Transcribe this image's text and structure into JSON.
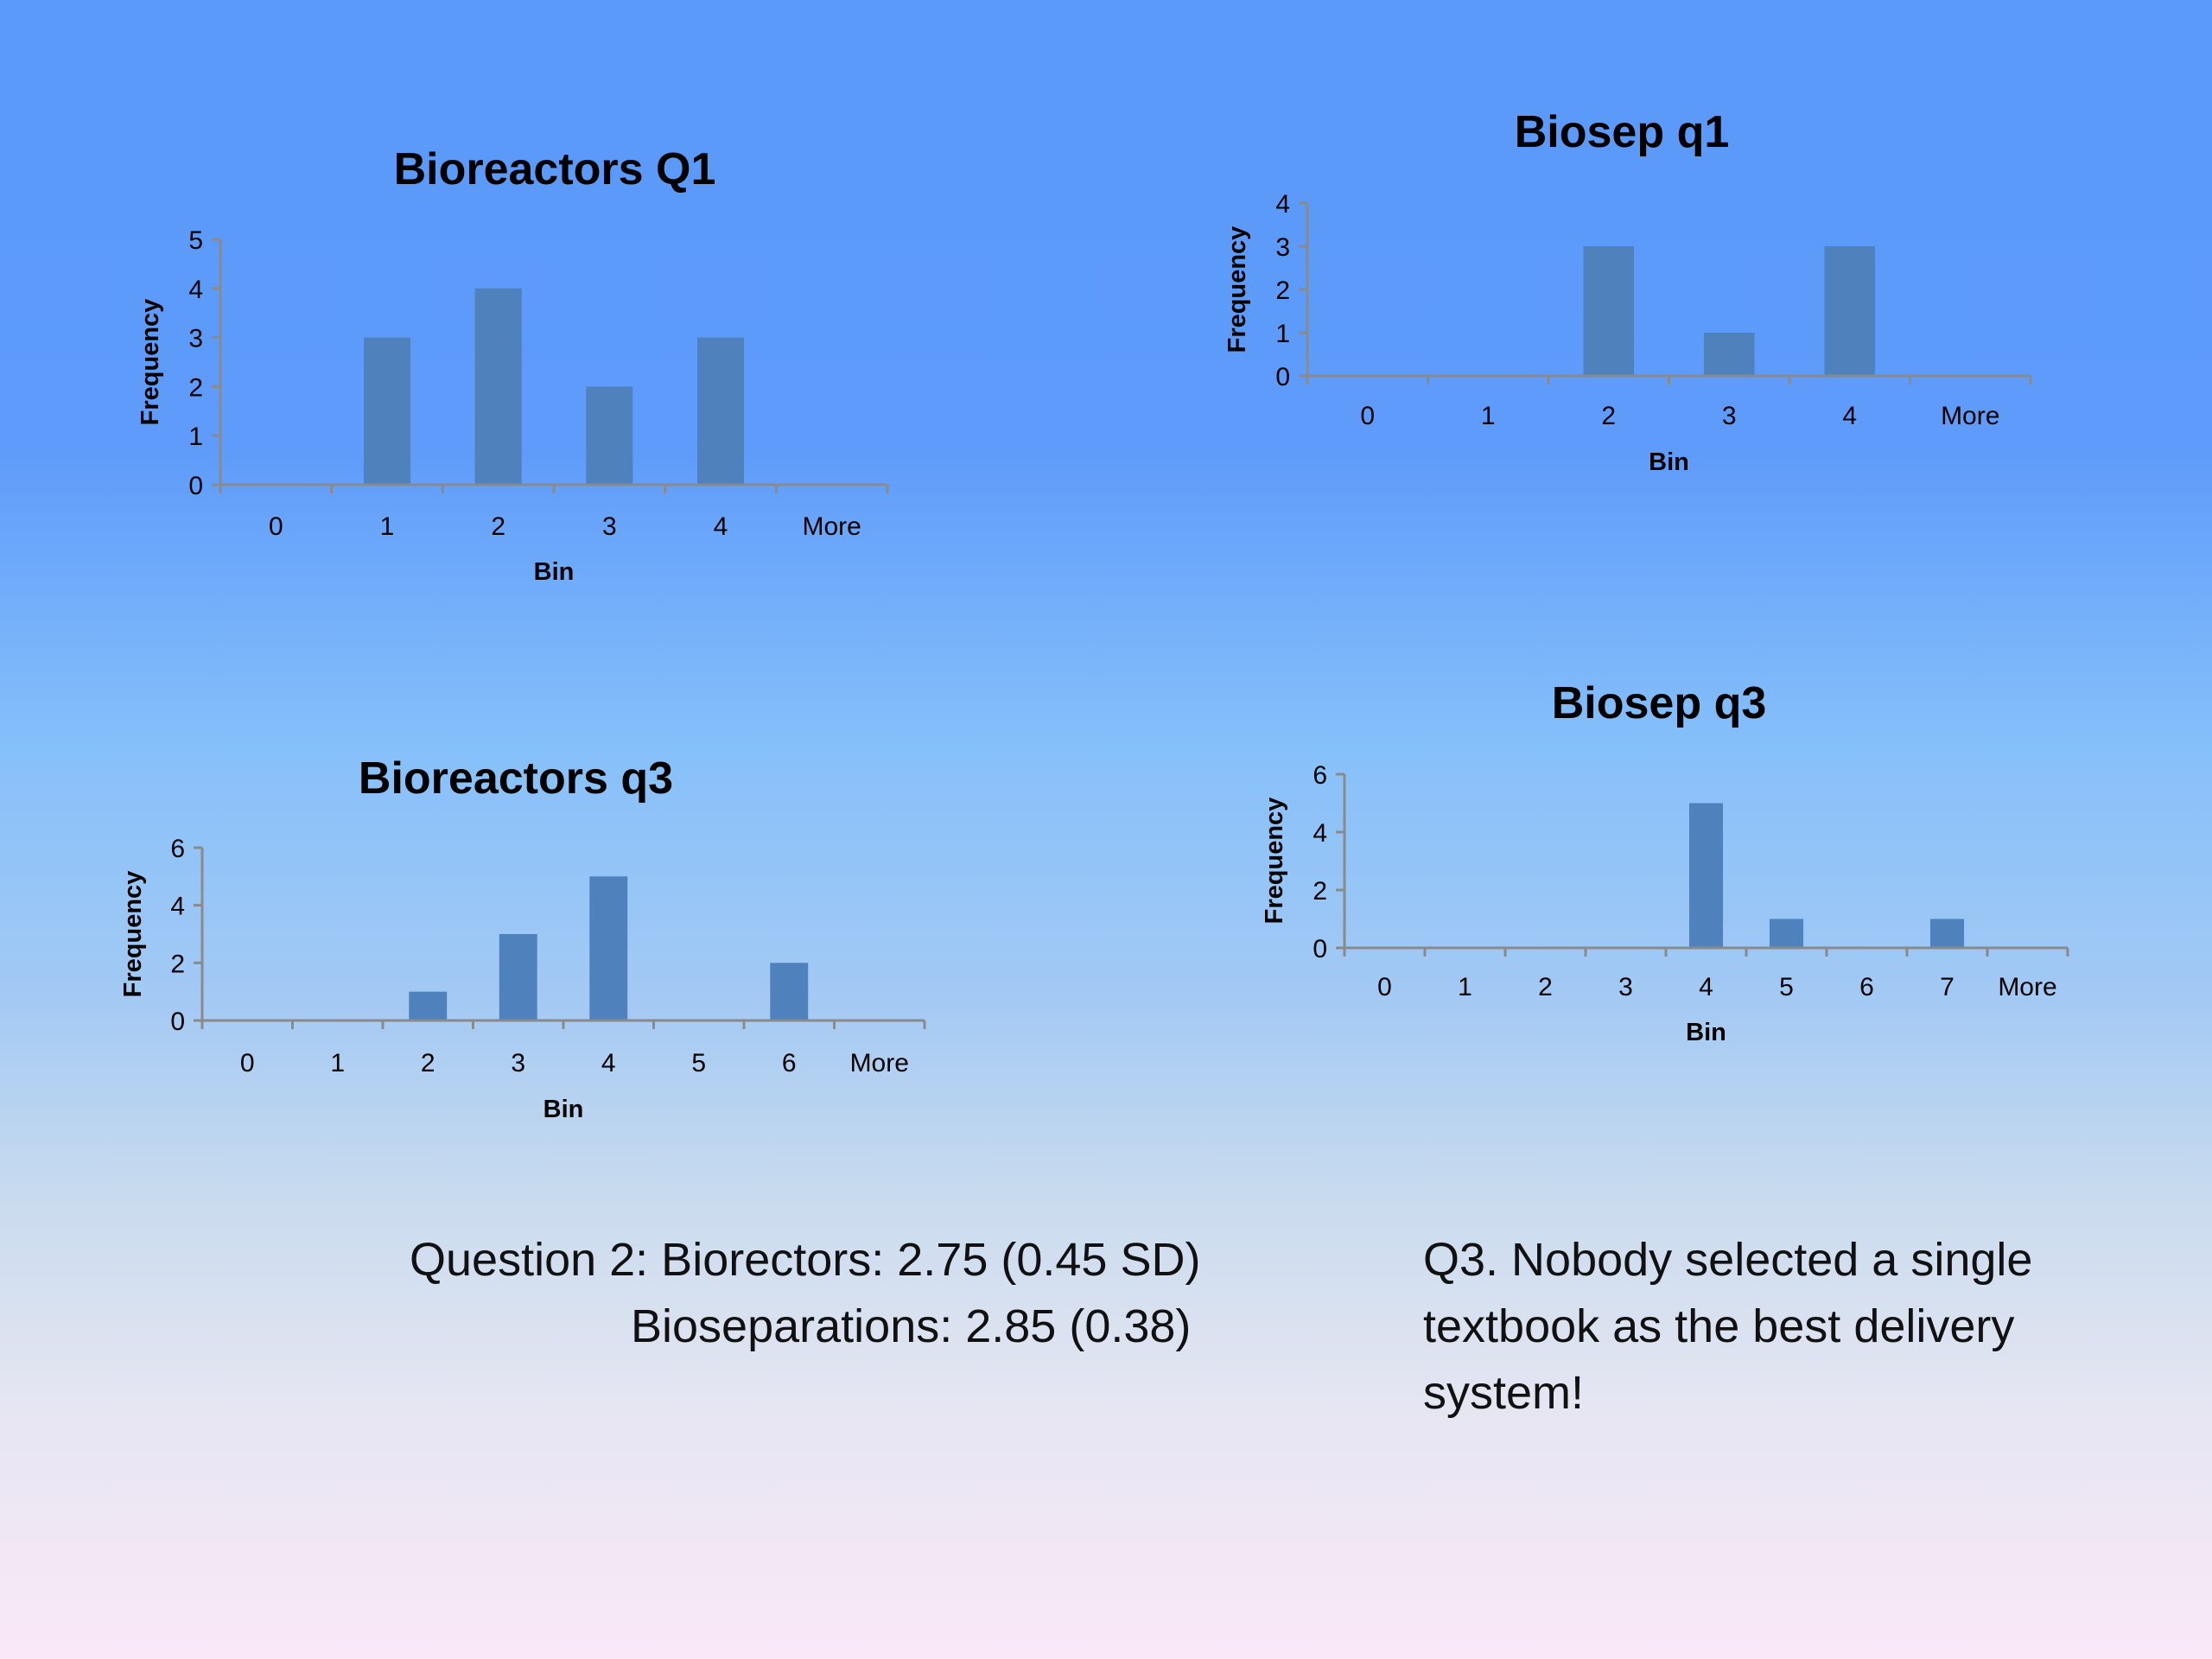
{
  "chart_data": [
    {
      "type": "bar",
      "title": "Bioreactors Q1",
      "xlabel": "Bin",
      "ylabel": "Frequency",
      "categories": [
        "0",
        "1",
        "2",
        "3",
        "4",
        "More"
      ],
      "values": [
        0,
        3,
        4,
        2,
        3,
        0
      ],
      "ylim": [
        0,
        5
      ],
      "yticks": [
        "0",
        "1",
        "2",
        "3",
        "4",
        "5"
      ],
      "color": "#4f81bd",
      "legend": "none",
      "grid": false
    },
    {
      "type": "bar",
      "title": "Biosep q1",
      "xlabel": "Bin",
      "ylabel": "Frequency",
      "categories": [
        "0",
        "1",
        "2",
        "3",
        "4",
        "More"
      ],
      "values": [
        0,
        0,
        3,
        1,
        3,
        0
      ],
      "ylim": [
        0,
        4
      ],
      "yticks": [
        "0",
        "1",
        "2",
        "3",
        "4"
      ],
      "color": "#4f81bd",
      "legend": "none",
      "grid": false
    },
    {
      "type": "bar",
      "title": "Bioreactors q3",
      "xlabel": "Bin",
      "ylabel": "Frequency",
      "categories": [
        "0",
        "1",
        "2",
        "3",
        "4",
        "5",
        "6",
        "More"
      ],
      "values": [
        0,
        0,
        1,
        3,
        5,
        0,
        2,
        0
      ],
      "ylim": [
        0,
        6
      ],
      "yticks": [
        "0",
        "2",
        "4",
        "6"
      ],
      "color": "#4f81bd",
      "legend": "none",
      "grid": false
    },
    {
      "type": "bar",
      "title": "Biosep q3",
      "xlabel": "Bin",
      "ylabel": "Frequency",
      "categories": [
        "0",
        "1",
        "2",
        "3",
        "4",
        "5",
        "6",
        "7",
        "More"
      ],
      "values": [
        0,
        0,
        0,
        0,
        5,
        1,
        0,
        1,
        0
      ],
      "ylim": [
        0,
        6
      ],
      "yticks": [
        "0",
        "2",
        "4",
        "6"
      ],
      "color": "#4f81bd",
      "legend": "none",
      "grid": false
    }
  ],
  "notes": {
    "q2_line1": "Question 2:  Biorectors: 2.75 (0.45 SD)",
    "q2_line2": "Bioseparations: 2.85 (0.38)",
    "q3_text": "Q3.  Nobody selected a single textbook as the best delivery system!"
  }
}
